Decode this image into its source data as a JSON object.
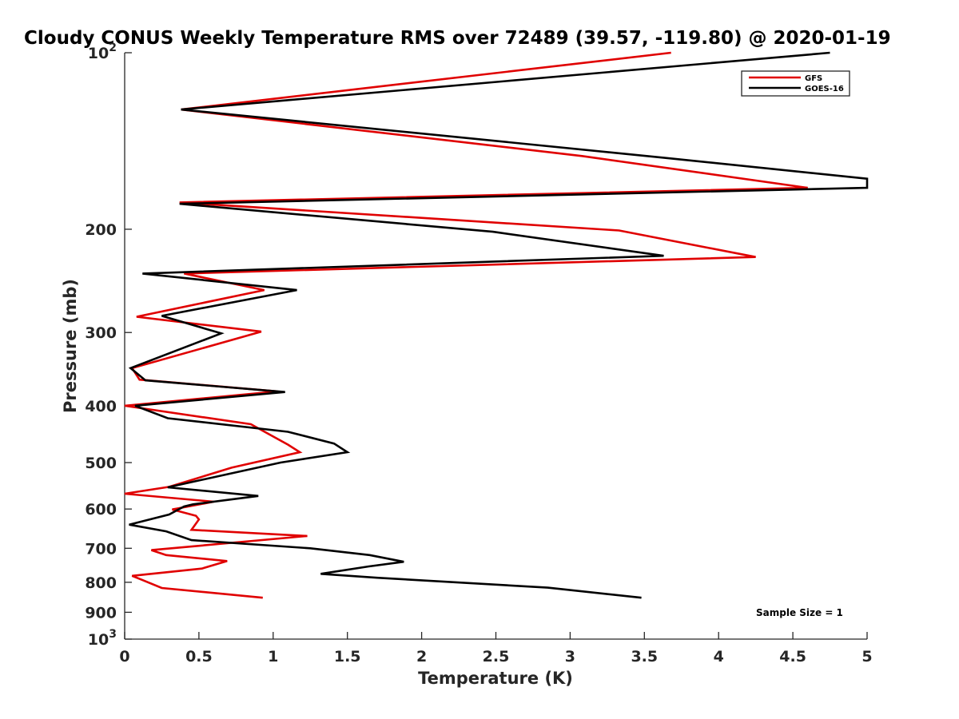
{
  "chart_data": {
    "type": "line",
    "title": "Cloudy CONUS Weekly Temperature RMS over 72489 (39.57, -119.80) @ 2020-01-19",
    "xlabel": "Temperature (K)",
    "ylabel": "Pressure (mb)",
    "xlim": [
      0,
      5
    ],
    "ylim": [
      100,
      1000
    ],
    "y_scale": "log",
    "y_reversed": true,
    "x_ticks": [
      "0",
      "0.5",
      "1",
      "1.5",
      "2",
      "2.5",
      "3",
      "3.5",
      "4",
      "4.5",
      "5"
    ],
    "x_tick_values": [
      0,
      0.5,
      1,
      1.5,
      2,
      2.5,
      3,
      3.5,
      4,
      4.5,
      5
    ],
    "y_ticks": [
      {
        "value": 100,
        "base": "10",
        "exp": "2"
      },
      {
        "value": 200,
        "label": "200"
      },
      {
        "value": 300,
        "label": "300"
      },
      {
        "value": 400,
        "label": "400"
      },
      {
        "value": 500,
        "label": "500"
      },
      {
        "value": 600,
        "label": "600"
      },
      {
        "value": 700,
        "label": "700"
      },
      {
        "value": 800,
        "label": "800"
      },
      {
        "value": 900,
        "label": "900"
      },
      {
        "value": 1000,
        "base": "10",
        "exp": "3"
      }
    ],
    "grid": false,
    "legend_position": "top-right",
    "annotation": "Sample Size = 1",
    "series": [
      {
        "name": "GFS",
        "color": "#e00000",
        "x": [
          3.68,
          0.38,
          3.08,
          4.6,
          0.37,
          3.33,
          4.25,
          0.4,
          0.94,
          0.08,
          0.92,
          0.05,
          0.1,
          1.03,
          0,
          0.85,
          1.1,
          1.18,
          0.72,
          0.3,
          0,
          0.6,
          0.32,
          0.48,
          0.5,
          0.45,
          1.23,
          0.18,
          0.28,
          0.69,
          0.52,
          0.05,
          0.12,
          0.25,
          0.93
        ],
        "y": [
          100,
          125,
          150,
          170,
          180,
          201,
          223,
          238,
          254,
          282,
          299,
          345,
          361,
          378,
          400,
          430,
          466,
          480,
          510,
          550,
          565,
          583,
          601,
          616,
          625,
          651,
          667,
          705,
          719,
          736,
          758,
          780,
          793,
          818,
          850
        ]
      },
      {
        "name": "GOES-16",
        "color": "#000000",
        "x": [
          4.75,
          0.38,
          3.63,
          5.0,
          5.0,
          0.37,
          2.48,
          3.63,
          0.12,
          1.16,
          0.25,
          0.65,
          0.04,
          0.14,
          1.08,
          0.07,
          0.29,
          1.1,
          1.41,
          1.5,
          1.05,
          0.29,
          0.9,
          0.46,
          0.4,
          0.3,
          0.03,
          0.28,
          0.45,
          1.25,
          1.65,
          1.88,
          1.64,
          1.32,
          1.7,
          2.85,
          3.48
        ],
        "y": [
          100,
          125,
          151,
          164,
          170,
          181,
          202,
          222,
          238,
          254,
          281,
          301,
          345,
          362,
          379,
          400,
          420,
          443,
          464,
          480,
          500,
          551,
          570,
          589,
          594,
          613,
          638,
          655,
          678,
          700,
          719,
          738,
          752,
          774,
          786,
          817,
          850
        ]
      }
    ]
  }
}
